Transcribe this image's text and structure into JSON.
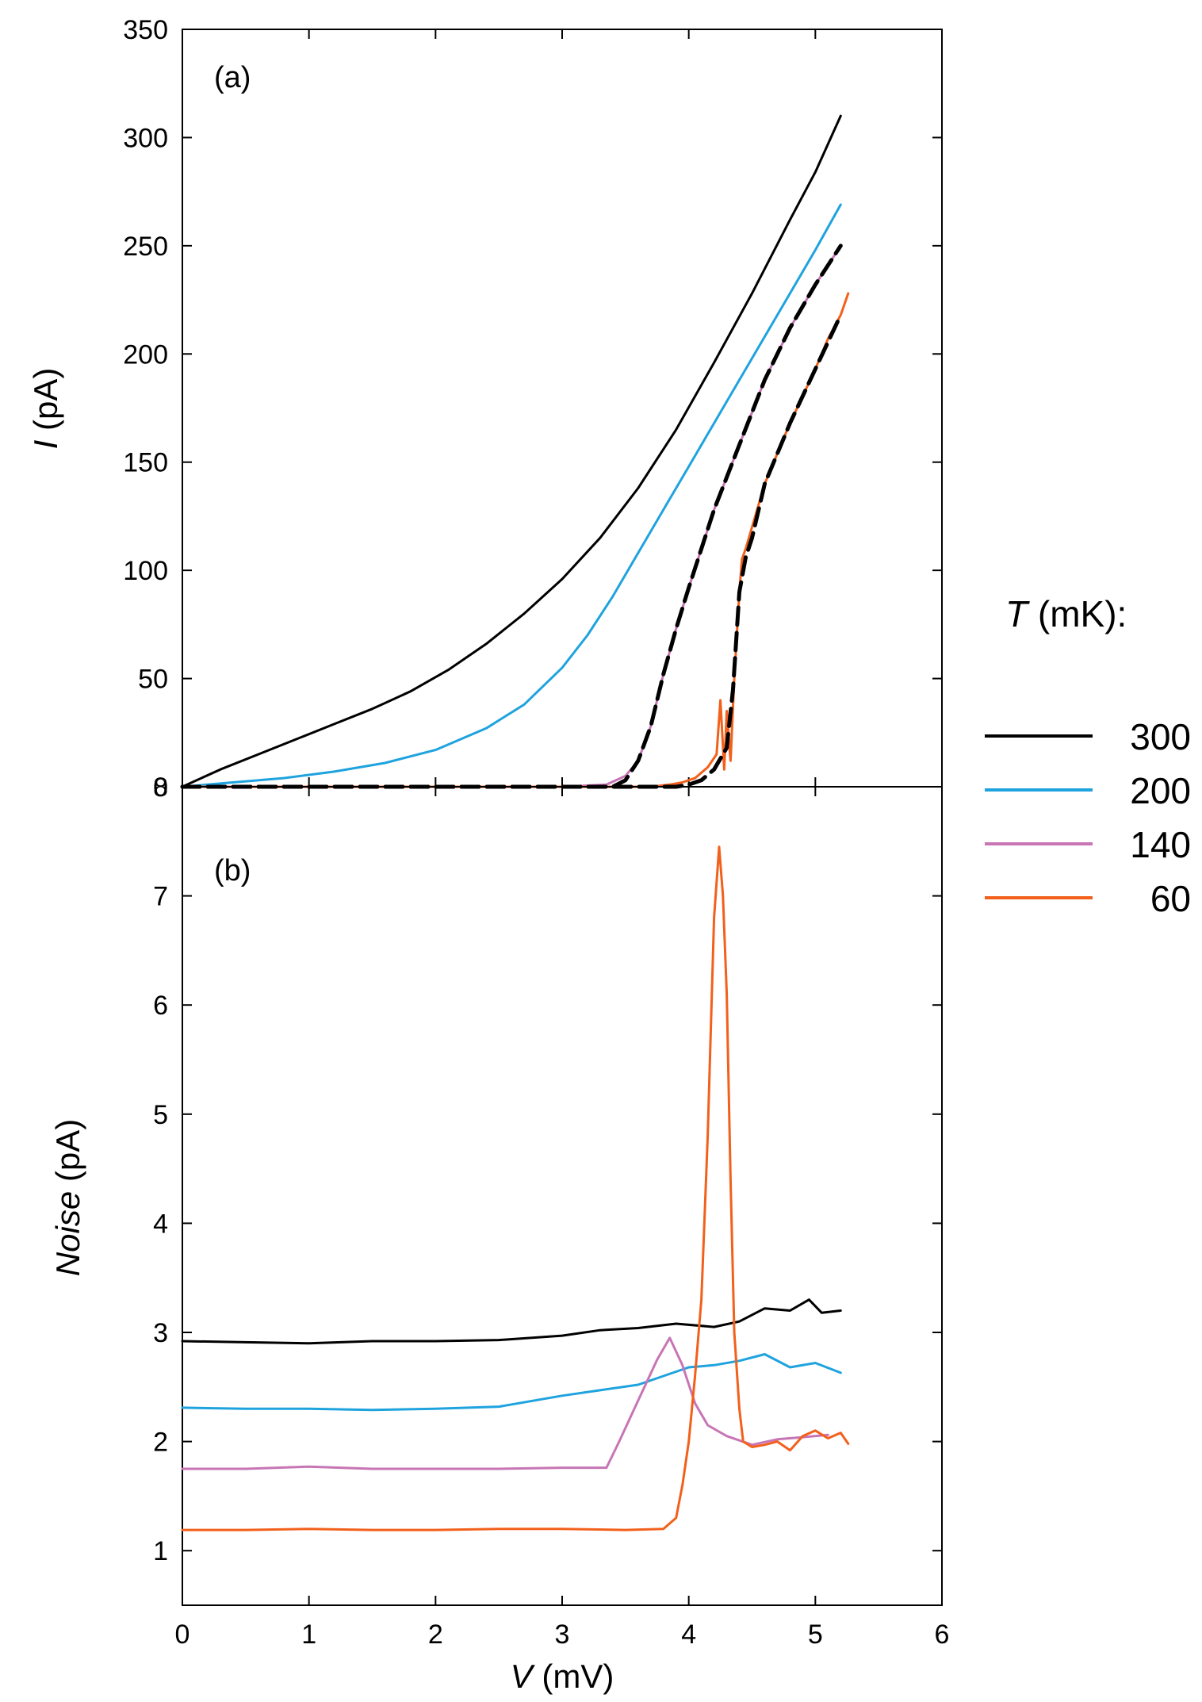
{
  "legend": {
    "title_var": "T",
    "title_unit": " (mK):",
    "entries": [
      {
        "label": "300",
        "color": "#000000"
      },
      {
        "label": "200",
        "color": "#1fa3de"
      },
      {
        "label": "140",
        "color": "#c775b5"
      },
      {
        "label": "60",
        "color": "#f2601b"
      }
    ]
  },
  "chart_data": [
    {
      "type": "line",
      "panel_label": "(a)",
      "title": "",
      "xlabel": "",
      "ylabel_var": "I",
      "ylabel_unit": " (pA)",
      "xlim": [
        0,
        6
      ],
      "ylim": [
        0,
        350
      ],
      "xticks": [
        0,
        1,
        2,
        3,
        4,
        5,
        6
      ],
      "yticks": [
        0,
        50,
        100,
        150,
        200,
        250,
        300,
        350
      ],
      "x_tick_labels_shown": false,
      "series": [
        {
          "name": "300",
          "color": "#000000",
          "width": 3,
          "x": [
            0,
            0.3,
            0.6,
            0.9,
            1.2,
            1.5,
            1.8,
            2.1,
            2.4,
            2.7,
            3.0,
            3.3,
            3.6,
            3.9,
            4.2,
            4.5,
            4.8,
            5.0,
            5.2
          ],
          "y": [
            0,
            8,
            15,
            22,
            29,
            36,
            44,
            54,
            66,
            80,
            96,
            115,
            138,
            165,
            196,
            228,
            262,
            284,
            310
          ]
        },
        {
          "name": "200",
          "color": "#1fa3de",
          "width": 3,
          "x": [
            0,
            0.4,
            0.8,
            1.2,
            1.6,
            2.0,
            2.4,
            2.7,
            3.0,
            3.2,
            3.4,
            3.6,
            3.8,
            4.0,
            4.2,
            4.5,
            4.8,
            5.0,
            5.2
          ],
          "y": [
            0,
            2,
            4,
            7,
            11,
            17,
            27,
            38,
            55,
            70,
            88,
            108,
            128,
            148,
            168,
            198,
            228,
            248,
            269
          ]
        },
        {
          "name": "140",
          "color": "#c775b5",
          "width": 3,
          "x": [
            0,
            1.0,
            2.0,
            3.0,
            3.35,
            3.5,
            3.6,
            3.7,
            3.8,
            3.9,
            4.0,
            4.2,
            4.4,
            4.6,
            4.8,
            5.0,
            5.2
          ],
          "y": [
            0,
            0,
            0,
            0,
            1,
            5,
            12,
            28,
            52,
            73,
            92,
            128,
            158,
            188,
            212,
            232,
            250
          ]
        },
        {
          "name": "140-fit",
          "color": "#000000",
          "width": 5,
          "dash": "22,10",
          "x": [
            0,
            1.0,
            2.0,
            3.0,
            3.4,
            3.5,
            3.6,
            3.7,
            3.8,
            3.9,
            4.0,
            4.2,
            4.4,
            4.6,
            4.8,
            5.0,
            5.2
          ],
          "y": [
            0,
            0,
            0,
            0,
            0,
            3,
            12,
            28,
            52,
            73,
            92,
            128,
            158,
            188,
            212,
            232,
            250
          ]
        },
        {
          "name": "60",
          "color": "#f2601b",
          "width": 3,
          "x": [
            0,
            1.0,
            2.0,
            3.0,
            3.7,
            3.85,
            3.95,
            4.05,
            4.15,
            4.22,
            4.25,
            4.28,
            4.3,
            4.33,
            4.36,
            4.38,
            4.4,
            4.42,
            4.45,
            4.6,
            4.8,
            5.0,
            5.1,
            5.2,
            5.26
          ],
          "y": [
            0,
            0,
            0,
            0,
            0,
            1,
            2,
            4,
            9,
            15,
            40,
            8,
            35,
            12,
            50,
            70,
            90,
            105,
            110,
            140,
            168,
            193,
            207,
            218,
            228
          ]
        },
        {
          "name": "60-fit",
          "color": "#000000",
          "width": 5,
          "dash": "22,10",
          "x": [
            0,
            1.0,
            2.0,
            3.0,
            3.9,
            4.0,
            4.1,
            4.2,
            4.3,
            4.35,
            4.4,
            4.45,
            4.5,
            4.6,
            4.8,
            5.0,
            5.2
          ],
          "y": [
            0,
            0,
            0,
            0,
            0,
            1,
            3,
            8,
            18,
            45,
            90,
            106,
            115,
            140,
            168,
            193,
            218
          ]
        }
      ]
    },
    {
      "type": "line",
      "panel_label": "(b)",
      "title": "",
      "xlabel_var": "V",
      "xlabel_unit": " (mV)",
      "ylabel_var": "Noise",
      "ylabel_unit": " (pA)",
      "xlim": [
        0,
        6
      ],
      "ylim": [
        0.5,
        8
      ],
      "xticks": [
        0,
        1,
        2,
        3,
        4,
        5,
        6
      ],
      "yticks": [
        1,
        2,
        3,
        4,
        5,
        6,
        7,
        8
      ],
      "x_tick_labels_shown": true,
      "series": [
        {
          "name": "300",
          "color": "#000000",
          "width": 3,
          "x": [
            0,
            0.5,
            1.0,
            1.5,
            2.0,
            2.5,
            3.0,
            3.3,
            3.6,
            3.9,
            4.2,
            4.4,
            4.6,
            4.8,
            4.95,
            5.05,
            5.2
          ],
          "y": [
            2.92,
            2.91,
            2.9,
            2.92,
            2.92,
            2.93,
            2.97,
            3.02,
            3.04,
            3.08,
            3.05,
            3.1,
            3.22,
            3.2,
            3.3,
            3.18,
            3.2
          ]
        },
        {
          "name": "200",
          "color": "#1fa3de",
          "width": 3,
          "x": [
            0,
            0.5,
            1.0,
            1.5,
            2.0,
            2.5,
            3.0,
            3.3,
            3.6,
            3.8,
            4.0,
            4.2,
            4.4,
            4.6,
            4.8,
            5.0,
            5.2
          ],
          "y": [
            2.31,
            2.3,
            2.3,
            2.29,
            2.3,
            2.32,
            2.42,
            2.47,
            2.52,
            2.6,
            2.68,
            2.7,
            2.74,
            2.8,
            2.68,
            2.72,
            2.63
          ]
        },
        {
          "name": "140",
          "color": "#c775b5",
          "width": 3,
          "x": [
            0,
            0.5,
            1.0,
            1.5,
            2.0,
            2.5,
            3.0,
            3.35,
            3.45,
            3.55,
            3.65,
            3.75,
            3.85,
            3.95,
            4.05,
            4.15,
            4.3,
            4.5,
            4.7,
            4.9,
            5.1
          ],
          "y": [
            1.75,
            1.75,
            1.77,
            1.75,
            1.75,
            1.75,
            1.76,
            1.76,
            2.0,
            2.25,
            2.5,
            2.75,
            2.95,
            2.7,
            2.35,
            2.15,
            2.05,
            1.97,
            2.02,
            2.04,
            2.06
          ]
        },
        {
          "name": "60",
          "color": "#f2601b",
          "width": 3,
          "x": [
            0,
            0.5,
            1.0,
            1.5,
            2.0,
            2.5,
            3.0,
            3.5,
            3.8,
            3.9,
            3.95,
            4.0,
            4.05,
            4.1,
            4.15,
            4.2,
            4.24,
            4.27,
            4.3,
            4.33,
            4.36,
            4.4,
            4.43,
            4.5,
            4.6,
            4.7,
            4.8,
            4.9,
            5.0,
            5.1,
            5.2,
            5.26
          ],
          "y": [
            1.19,
            1.19,
            1.2,
            1.19,
            1.19,
            1.2,
            1.2,
            1.19,
            1.2,
            1.3,
            1.6,
            2.0,
            2.6,
            3.3,
            4.8,
            6.8,
            7.45,
            7.0,
            6.1,
            4.4,
            3.0,
            2.3,
            2.0,
            1.95,
            1.97,
            2.0,
            1.92,
            2.05,
            2.1,
            2.03,
            2.08,
            1.98
          ]
        }
      ]
    }
  ]
}
